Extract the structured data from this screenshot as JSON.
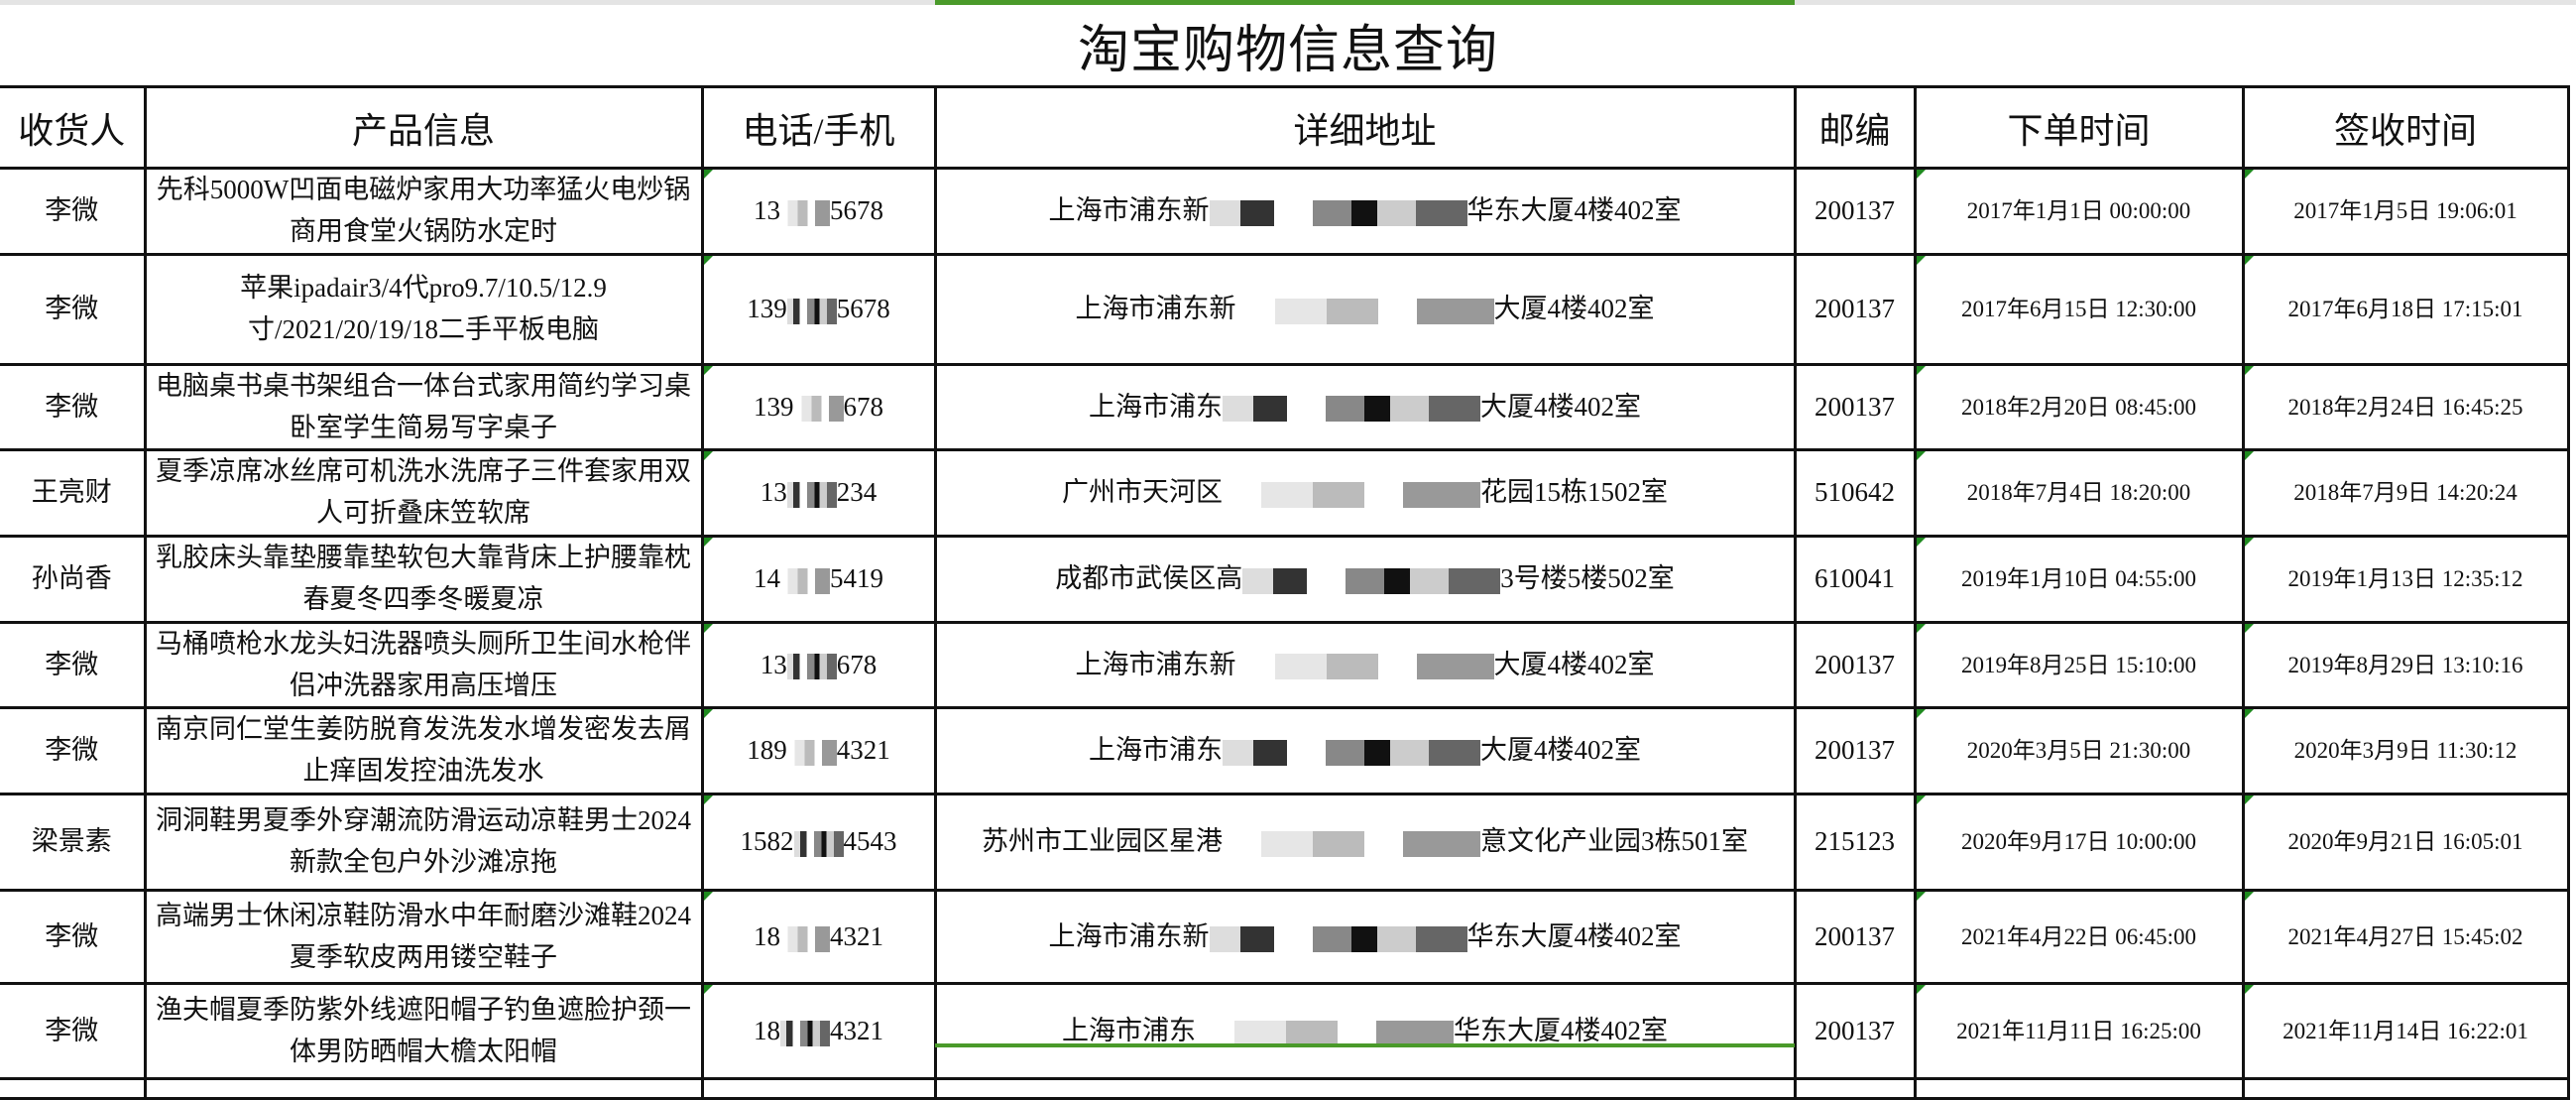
{
  "title": "淘宝购物信息查询",
  "accent_color": "#4a9a2a",
  "headers": [
    "收货人",
    "产品信息",
    "电话/手机",
    "详细地址",
    "邮编",
    "下单时间",
    "签收时间"
  ],
  "rows": [
    {
      "name": "李微",
      "product": "先科5000W凹面电磁炉家用大功率猛火电炒锅商用食堂火锅防水定时",
      "phone_prefix": "13",
      "phone_suffix": "5678",
      "addr_prefix": "上海市浦东新",
      "addr_suffix": "华东大厦4楼402室",
      "zip": "200137",
      "order_time": "2017年1月1日 00:00:00",
      "sign_time": "2017年1月5日 19:06:01"
    },
    {
      "name": "李微",
      "product": "苹果ipadair3/4代pro9.7/10.5/12.9寸/2021/20/19/18二手平板电脑",
      "phone_prefix": "139",
      "phone_suffix": "5678",
      "addr_prefix": "上海市浦东新",
      "addr_suffix": "大厦4楼402室",
      "zip": "200137",
      "order_time": "2017年6月15日 12:30:00",
      "sign_time": "2017年6月18日 17:15:01"
    },
    {
      "name": "李微",
      "product": "电脑桌书桌书架组合一体台式家用简约学习桌卧室学生简易写字桌子",
      "phone_prefix": "139",
      "phone_suffix": "678",
      "addr_prefix": "上海市浦东",
      "addr_suffix": "大厦4楼402室",
      "zip": "200137",
      "order_time": "2018年2月20日 08:45:00",
      "sign_time": "2018年2月24日 16:45:25"
    },
    {
      "name": "王亮财",
      "product": "夏季凉席冰丝席可机洗水洗席子三件套家用双人可折叠床笠软席",
      "phone_prefix": "13",
      "phone_suffix": "234",
      "addr_prefix": "广州市天河区",
      "addr_suffix": "花园15栋1502室",
      "zip": "510642",
      "order_time": "2018年7月4日 18:20:00",
      "sign_time": "2018年7月9日 14:20:24"
    },
    {
      "name": "孙尚香",
      "product": "乳胶床头靠垫腰靠垫软包大靠背床上护腰靠枕春夏冬四季冬暖夏凉",
      "phone_prefix": "14",
      "phone_suffix": "5419",
      "addr_prefix": "成都市武侯区高",
      "addr_suffix": "3号楼5楼502室",
      "zip": "610041",
      "order_time": "2019年1月10日 04:55:00",
      "sign_time": "2019年1月13日 12:35:12"
    },
    {
      "name": "李微",
      "product": "马桶喷枪水龙头妇洗器喷头厕所卫生间水枪伴侣冲洗器家用高压增压",
      "phone_prefix": "13",
      "phone_suffix": "678",
      "addr_prefix": "上海市浦东新",
      "addr_suffix": "大厦4楼402室",
      "zip": "200137",
      "order_time": "2019年8月25日 15:10:00",
      "sign_time": "2019年8月29日 13:10:16"
    },
    {
      "name": "李微",
      "product": "南京同仁堂生姜防脱育发洗发水增发密发去屑止痒固发控油洗发水",
      "phone_prefix": "189",
      "phone_suffix": "4321",
      "addr_prefix": "上海市浦东",
      "addr_suffix": "大厦4楼402室",
      "zip": "200137",
      "order_time": "2020年3月5日 21:30:00",
      "sign_time": "2020年3月9日 11:30:12"
    },
    {
      "name": "梁景素",
      "product": "洞洞鞋男夏季外穿潮流防滑运动凉鞋男士2024新款全包户外沙滩凉拖",
      "phone_prefix": "1582",
      "phone_suffix": "4543",
      "addr_prefix": "苏州市工业园区星港",
      "addr_suffix": "意文化产业园3栋501室",
      "zip": "215123",
      "order_time": "2020年9月17日 10:00:00",
      "sign_time": "2020年9月21日 16:05:01"
    },
    {
      "name": "李微",
      "product": "高端男士休闲凉鞋防滑水中年耐磨沙滩鞋2024夏季软皮两用镂空鞋子",
      "phone_prefix": "18",
      "phone_suffix": "4321",
      "addr_prefix": "上海市浦东新",
      "addr_suffix": "华东大厦4楼402室",
      "zip": "200137",
      "order_time": "2021年4月22日 06:45:00",
      "sign_time": "2021年4月27日 15:45:02"
    },
    {
      "name": "李微",
      "product": "渔夫帽夏季防紫外线遮阳帽子钓鱼遮脸护颈一体男防晒帽大檐太阳帽",
      "phone_prefix": "18",
      "phone_suffix": "4321",
      "addr_prefix": "上海市浦东",
      "addr_suffix": "华东大厦4楼402室",
      "zip": "200137",
      "order_time": "2021年11月11日 16:25:00",
      "sign_time": "2021年11月14日 16:22:01"
    }
  ]
}
